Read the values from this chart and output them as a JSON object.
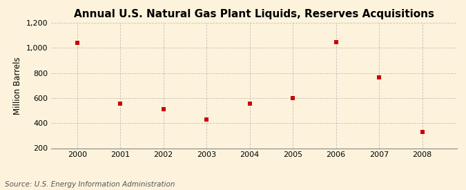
{
  "title": "Annual U.S. Natural Gas Plant Liquids, Reserves Acquisitions",
  "xlabel": "",
  "ylabel": "Million Barrels",
  "source_text": "Source: U.S. Energy Information Administration",
  "years": [
    2000,
    2001,
    2002,
    2003,
    2004,
    2005,
    2006,
    2007,
    2008
  ],
  "values": [
    1040,
    555,
    510,
    430,
    555,
    600,
    1045,
    765,
    330
  ],
  "ylim": [
    200,
    1200
  ],
  "yticks": [
    200,
    400,
    600,
    800,
    1000,
    1200
  ],
  "ytick_labels": [
    "200",
    "400",
    "600",
    "800",
    "1,000",
    "1,200"
  ],
  "marker_color": "#cc0000",
  "marker_size": 4,
  "background_color": "#fdf3dc",
  "plot_bg_color": "#fdf3dc",
  "grid_color": "#aaaaaa",
  "title_fontsize": 11,
  "axis_label_fontsize": 8.5,
  "tick_fontsize": 8,
  "source_fontsize": 7.5
}
